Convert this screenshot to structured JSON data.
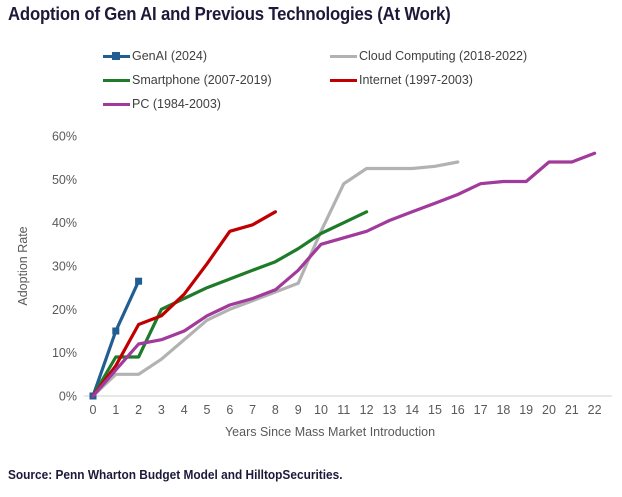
{
  "title": "Adoption of Gen AI and Previous Technologies (At Work)",
  "source": "Source: Penn Wharton Budget Model and HilltopSecurities.",
  "colors": {
    "genai": "#215e91",
    "cloud": "#b2b2b2",
    "smartphone": "#1e7b29",
    "internet": "#c00000",
    "pc": "#a23a9b",
    "axis_text": "#595959",
    "axis_line": "#d9d9d9",
    "title_text": "#1d1a39"
  },
  "chart_data": {
    "type": "line",
    "title": "Adoption of Gen AI and Previous Technologies (At Work)",
    "xlabel": "Years Since Mass Market Introduction",
    "ylabel": "Adoption Rate",
    "xlim": [
      0,
      22
    ],
    "ylim": [
      0,
      60
    ],
    "grid": "off",
    "legend_position": "top",
    "x_ticks": [
      0,
      1,
      2,
      3,
      4,
      5,
      6,
      7,
      8,
      9,
      10,
      11,
      12,
      13,
      14,
      15,
      16,
      17,
      18,
      19,
      20,
      21,
      22
    ],
    "y_ticks": [
      {
        "value": 0,
        "label": "0%"
      },
      {
        "value": 10,
        "label": "10%"
      },
      {
        "value": 20,
        "label": "20%"
      },
      {
        "value": 30,
        "label": "30%"
      },
      {
        "value": 40,
        "label": "40%"
      },
      {
        "value": 50,
        "label": "50%"
      },
      {
        "value": 60,
        "label": "60%"
      }
    ],
    "series": [
      {
        "id": "genai",
        "name": "GenAI (2024)",
        "color": "#215e91",
        "marker": "square",
        "x": [
          0,
          1,
          2
        ],
        "values": [
          0,
          15,
          26.5
        ]
      },
      {
        "id": "cloud",
        "name": "Cloud Computing (2018-2022)",
        "color": "#b2b2b2",
        "marker": "none",
        "x": [
          0,
          1,
          2,
          3,
          4,
          5,
          6,
          7,
          8,
          9,
          10,
          11,
          12,
          13,
          14,
          15,
          16
        ],
        "values": [
          0,
          5,
          5,
          8.5,
          13,
          17.5,
          20,
          22,
          24,
          26,
          38,
          49,
          52.5,
          52.5,
          52.5,
          53,
          54
        ]
      },
      {
        "id": "smartphone",
        "name": "Smartphone (2007-2019)",
        "color": "#1e7b29",
        "marker": "none",
        "x": [
          0,
          1,
          2,
          3,
          4,
          5,
          6,
          7,
          8,
          9,
          10,
          11,
          12
        ],
        "values": [
          0,
          9,
          9,
          20,
          22.5,
          25,
          27,
          29,
          31,
          34,
          37.5,
          40,
          42.5
        ]
      },
      {
        "id": "internet",
        "name": "Internet (1997-2003)",
        "color": "#c00000",
        "marker": "none",
        "x": [
          0,
          1,
          2,
          3,
          4,
          5,
          6,
          7,
          8
        ],
        "values": [
          0,
          7,
          16.5,
          18.5,
          23.5,
          30.5,
          38,
          39.5,
          42.5
        ]
      },
      {
        "id": "pc",
        "name": "PC (1984-2003)",
        "color": "#a23a9b",
        "marker": "none",
        "x": [
          0,
          1,
          2,
          3,
          4,
          5,
          6,
          7,
          8,
          9,
          10,
          11,
          12,
          13,
          14,
          15,
          16,
          17,
          18,
          19,
          20,
          21,
          22
        ],
        "values": [
          0,
          6,
          12,
          13,
          15,
          18.5,
          21,
          22.5,
          24.5,
          29,
          35,
          36.5,
          38,
          40.5,
          42.5,
          44.5,
          46.5,
          49,
          49.5,
          49.5,
          54,
          54,
          56
        ]
      }
    ]
  }
}
